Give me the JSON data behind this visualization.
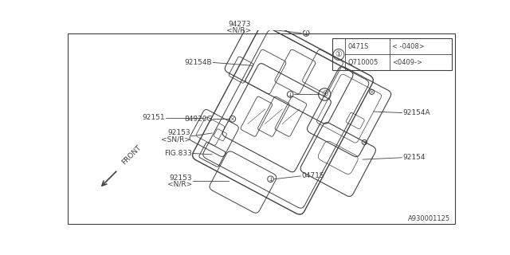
{
  "bg_color": "#ffffff",
  "line_color": "#404040",
  "fig_number": "A930001125",
  "legend_rows": [
    [
      "0471S",
      "< -0408>"
    ],
    [
      "Q710005",
      "<0409->"
    ]
  ],
  "front_label": "FRONT"
}
